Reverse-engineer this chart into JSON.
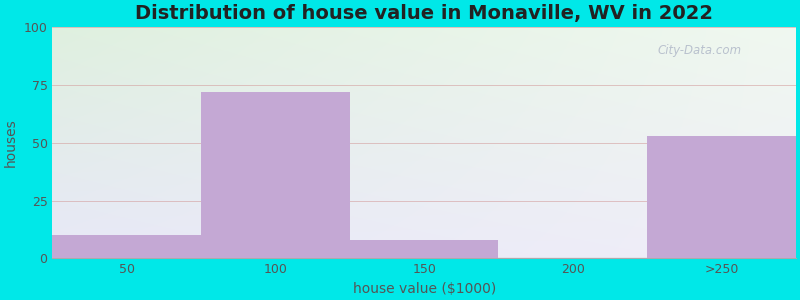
{
  "title": "Distribution of house value in Monaville, WV in 2022",
  "xlabel": "house value ($1000)",
  "ylabel": "houses",
  "bar_labels": [
    "50",
    "100",
    "150",
    "200",
    ">250"
  ],
  "bar_values": [
    10,
    72,
    8,
    0,
    53
  ],
  "bar_color": "#c4a8d4",
  "ylim": [
    0,
    100
  ],
  "yticks": [
    0,
    25,
    50,
    75,
    100
  ],
  "outer_bg": "#00e8e8",
  "title_fontsize": 14,
  "label_fontsize": 10,
  "tick_fontsize": 9,
  "watermark_text": "City-Data.com",
  "grad_top_left": "#dff0df",
  "grad_bottom_right": "#f0eef8",
  "grid_color": "#d4a0a0",
  "title_color": "#222222",
  "axis_label_color": "#555555",
  "tick_color": "#555555"
}
